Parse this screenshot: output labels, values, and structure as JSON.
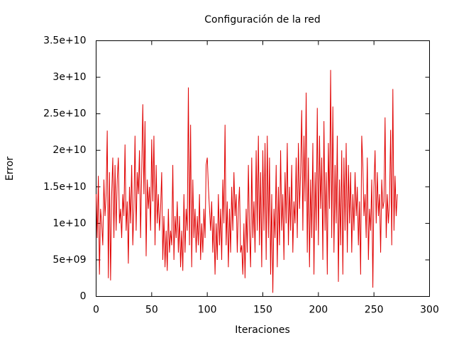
{
  "chart_data": {
    "type": "line",
    "title": "Configuración de la red",
    "x_label": "Iteraciones",
    "y_label": "Error",
    "color": "#e00000",
    "xlim": [
      0,
      300
    ],
    "xticks": [
      0,
      50,
      100,
      150,
      200,
      250,
      300
    ],
    "ylim": [
      0,
      35000000000.0
    ],
    "yticks": [
      0,
      {
        "value": 5000000000.0,
        "label": "5e+09"
      },
      {
        "value": 10000000000.0,
        "label": "1e+10"
      },
      {
        "value": 15000000000.0,
        "label": "1.5e+10"
      },
      {
        "value": 20000000000.0,
        "label": "2e+10"
      },
      {
        "value": 25000000000.0,
        "label": "2.5e+10"
      },
      {
        "value": 30000000000.0,
        "label": "3e+10"
      },
      {
        "value": 35000000000.0,
        "label": "3.5e+10"
      }
    ],
    "x": [
      0,
      1,
      2,
      3,
      4,
      5,
      6,
      7,
      8,
      9,
      10,
      11,
      12,
      13,
      14,
      15,
      16,
      17,
      18,
      19,
      20,
      21,
      22,
      23,
      24,
      25,
      26,
      27,
      28,
      29,
      30,
      31,
      32,
      33,
      34,
      35,
      36,
      37,
      38,
      39,
      40,
      41,
      42,
      43,
      44,
      45,
      46,
      47,
      48,
      49,
      50,
      51,
      52,
      53,
      54,
      55,
      56,
      57,
      58,
      59,
      60,
      61,
      62,
      63,
      64,
      65,
      66,
      67,
      68,
      69,
      70,
      71,
      72,
      73,
      74,
      75,
      76,
      77,
      78,
      79,
      80,
      81,
      82,
      83,
      84,
      85,
      86,
      87,
      88,
      89,
      90,
      91,
      92,
      93,
      94,
      95,
      96,
      97,
      98,
      99,
      100,
      101,
      102,
      103,
      104,
      105,
      106,
      107,
      108,
      109,
      110,
      111,
      112,
      113,
      114,
      115,
      116,
      117,
      118,
      119,
      120,
      121,
      122,
      123,
      124,
      125,
      126,
      127,
      128,
      129,
      130,
      131,
      132,
      133,
      134,
      135,
      136,
      137,
      138,
      139,
      140,
      141,
      142,
      143,
      144,
      145,
      146,
      147,
      148,
      149,
      150,
      151,
      152,
      153,
      154,
      155,
      156,
      157,
      158,
      159,
      160,
      161,
      162,
      163,
      164,
      165,
      166,
      167,
      168,
      169,
      170,
      171,
      172,
      173,
      174,
      175,
      176,
      177,
      178,
      179,
      180,
      181,
      182,
      183,
      184,
      185,
      186,
      187,
      188,
      189,
      190,
      191,
      192,
      193,
      194,
      195,
      196,
      197,
      198,
      199,
      200,
      201,
      202,
      203,
      204,
      205,
      206,
      207,
      208,
      209,
      210,
      211,
      212,
      213,
      214,
      215,
      216,
      217,
      218,
      219,
      220,
      221,
      222,
      223,
      224,
      225,
      226,
      227,
      228,
      229,
      230,
      231,
      232,
      233,
      234,
      235,
      236,
      237,
      238,
      239,
      240,
      241,
      242,
      243,
      244,
      245,
      246,
      247,
      248,
      249,
      250,
      251,
      252,
      253,
      254,
      255,
      256,
      257,
      258,
      259,
      260,
      261,
      262,
      263,
      264,
      265,
      266,
      267,
      268,
      269,
      270,
      271
    ],
    "values": [
      14000000000.0,
      8000000000.0,
      16500000000.0,
      3000000000.0,
      12000000000.0,
      10000000000.0,
      7000000000.0,
      16000000000.0,
      11000000000.0,
      14000000000.0,
      22700000000.0,
      2500000000.0,
      17000000000.0,
      2200000000.0,
      14000000000.0,
      19000000000.0,
      8000000000.0,
      18000000000.0,
      9000000000.0,
      16000000000.0,
      19000000000.0,
      10000000000.0,
      12000000000.0,
      8000000000.0,
      14000000000.0,
      11000000000.0,
      20800000000.0,
      9000000000.0,
      13000000000.0,
      4500000000.0,
      15000000000.0,
      10000000000.0,
      18000000000.0,
      7000000000.0,
      12000000000.0,
      22000000000.0,
      9000000000.0,
      17000000000.0,
      14000000000.0,
      20000000000.0,
      8000000000.0,
      17000000000.0,
      26300000000.0,
      14000000000.0,
      24000000000.0,
      5500000000.0,
      16000000000.0,
      12000000000.0,
      15000000000.0,
      9000000000.0,
      21500000000.0,
      13000000000.0,
      22000000000.0,
      7000000000.0,
      18000000000.0,
      10000000000.0,
      14000000000.0,
      9000000000.0,
      12000000000.0,
      17000000000.0,
      5000000000.0,
      11000000000.0,
      4000000000.0,
      9000000000.0,
      3500000000.0,
      12000000000.0,
      6000000000.0,
      9000000000.0,
      7000000000.0,
      18000000000.0,
      5000000000.0,
      11000000000.0,
      8000000000.0,
      13000000000.0,
      6000000000.0,
      11000000000.0,
      4000000000.0,
      9000000000.0,
      3500000000.0,
      14000000000.0,
      6000000000.0,
      12000000000.0,
      9000000000.0,
      28600000000.0,
      7000000000.0,
      23500000000.0,
      4000000000.0,
      16000000000.0,
      8000000000.0,
      12000000000.0,
      6000000000.0,
      11000000000.0,
      7000000000.0,
      14000000000.0,
      5000000000.0,
      10000000000.0,
      6000000000.0,
      12000000000.0,
      8000000000.0,
      18000000000.0,
      19000000000.0,
      15000000000.0,
      12000000000.0,
      9000000000.0,
      13000000000.0,
      6000000000.0,
      11000000000.0,
      3000000000.0,
      10000000000.0,
      5000000000.0,
      14000000000.0,
      7000000000.0,
      12000000000.0,
      5000000000.0,
      16000000000.0,
      10000000000.0,
      23500000000.0,
      7000000000.0,
      13000000000.0,
      4000000000.0,
      12000000000.0,
      6000000000.0,
      15000000000.0,
      9000000000.0,
      17000000000.0,
      11000000000.0,
      14000000000.0,
      6000000000.0,
      12000000000.0,
      15000000000.0,
      6000000000.0,
      7000000000.0,
      3000000000.0,
      10000000000.0,
      2500000000.0,
      12000000000.0,
      6000000000.0,
      18000000000.0,
      9000000000.0,
      4000000000.0,
      19000000000.0,
      8000000000.0,
      13000000000.0,
      6000000000.0,
      20000000000.0,
      9000000000.0,
      22000000000.0,
      7000000000.0,
      17000000000.0,
      4000000000.0,
      20000000000.0,
      9000000000.0,
      21000000000.0,
      5000000000.0,
      22000000000.0,
      8000000000.0,
      19000000000.0,
      3000000000.0,
      14000000000.0,
      500000000.0,
      12000000000.0,
      8000000000.0,
      18000000000.0,
      4000000000.0,
      15000000000.0,
      7000000000.0,
      20000000000.0,
      9000000000.0,
      14000000000.0,
      5000000000.0,
      17000000000.0,
      10000000000.0,
      21000000000.0,
      7000000000.0,
      15000000000.0,
      9000000000.0,
      18000000000.0,
      6000000000.0,
      13000000000.0,
      10000000000.0,
      19000000000.0,
      8000000000.0,
      21000000000.0,
      12000000000.0,
      17000000000.0,
      25500000000.0,
      9000000000.0,
      22000000000.0,
      13000000000.0,
      27900000000.0,
      6000000000.0,
      19000000000.0,
      4000000000.0,
      16000000000.0,
      8000000000.0,
      21000000000.0,
      3000000000.0,
      17000000000.0,
      9000000000.0,
      25800000000.0,
      7000000000.0,
      22000000000.0,
      12000000000.0,
      19000000000.0,
      5000000000.0,
      24000000000.0,
      9000000000.0,
      17000000000.0,
      3000000000.0,
      21000000000.0,
      12000000000.0,
      31000000000.0,
      8000000000.0,
      26000000000.0,
      6000000000.0,
      18000000000.0,
      10000000000.0,
      22000000000.0,
      2000000000.0,
      16000000000.0,
      7000000000.0,
      20000000000.0,
      3000000000.0,
      19000000000.0,
      9000000000.0,
      21000000000.0,
      6000000000.0,
      18000000000.0,
      10000000000.0,
      17000000000.0,
      6000000000.0,
      14000000000.0,
      9000000000.0,
      17000000000.0,
      11000000000.0,
      15000000000.0,
      7000000000.0,
      13000000000.0,
      3000000000.0,
      22000000000.0,
      18000000000.0,
      11000000000.0,
      14000000000.0,
      8000000000.0,
      19000000000.0,
      5000000000.0,
      12000000000.0,
      9000000000.0,
      16000000000.0,
      1200000000.0,
      15000000000.0,
      20000000000.0,
      10000000000.0,
      17000000000.0,
      11000000000.0,
      14000000000.0,
      6000000000.0,
      16000000000.0,
      12000000000.0,
      13000000000.0,
      24500000000.0,
      8000000000.0,
      14000000000.0,
      10000000000.0,
      13000000000.0,
      22800000000.0,
      7000000000.0,
      28400000000.0,
      9000000000.0,
      16500000000.0,
      11000000000.0,
      14000000000.0
    ]
  }
}
